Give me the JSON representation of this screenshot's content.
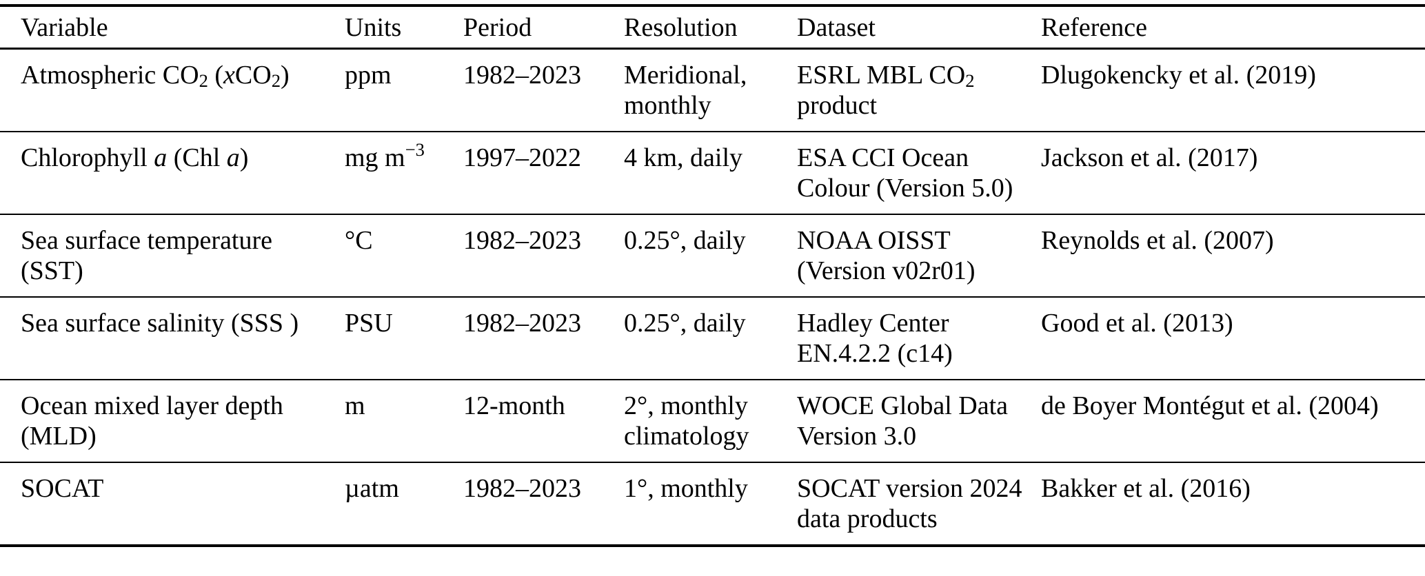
{
  "colors": {
    "text": "#000000",
    "background": "#ffffff",
    "rule": "#000000"
  },
  "table": {
    "columns": [
      "Variable",
      "Units",
      "Period",
      "Resolution",
      "Dataset",
      "Reference"
    ],
    "rows": [
      [
        [
          {
            "t": "Atmospheric CO"
          },
          {
            "t": "2",
            "s": "sub"
          },
          {
            "t": " ("
          },
          {
            "t": "x",
            "s": "i"
          },
          {
            "t": "CO"
          },
          {
            "t": "2",
            "s": "sub"
          },
          {
            "t": ")"
          }
        ],
        "ppm",
        "1982–2023",
        "Meridional, monthly",
        [
          {
            "t": "ESRL MBL CO"
          },
          {
            "t": "2",
            "s": "sub"
          },
          {
            "t": " product"
          }
        ],
        "Dlugokencky et al. (2019)"
      ],
      [
        [
          {
            "t": "Chlorophyll "
          },
          {
            "t": "a",
            "s": "i"
          },
          {
            "t": " (Chl "
          },
          {
            "t": "a",
            "s": "i"
          },
          {
            "t": ")"
          }
        ],
        [
          {
            "t": "mg m"
          },
          {
            "t": "−3",
            "s": "sup"
          }
        ],
        "1997–2022",
        "4 km, daily",
        "ESA CCI Ocean Colour (Version 5.0)",
        "Jackson et al. (2017)"
      ],
      [
        "Sea surface temperature (SST)",
        "°C",
        "1982–2023",
        "0.25°, daily",
        "NOAA OISST (Version v02r01)",
        "Reynolds et al. (2007)"
      ],
      [
        "Sea surface salinity (SSS )",
        "PSU",
        "1982–2023",
        "0.25°, daily",
        "Hadley Center EN.4.2.2 (c14)",
        "Good et al. (2013)"
      ],
      [
        "Ocean mixed layer depth (MLD)",
        "m",
        "12-month",
        "2°, monthly climatology",
        "WOCE Global Data Version 3.0",
        "de Boyer Montégut et al. (2004)"
      ],
      [
        "SOCAT",
        "µatm",
        "1982–2023",
        "1°, monthly",
        "SOCAT version 2024 data products",
        "Bakker et al. (2016)"
      ]
    ]
  }
}
